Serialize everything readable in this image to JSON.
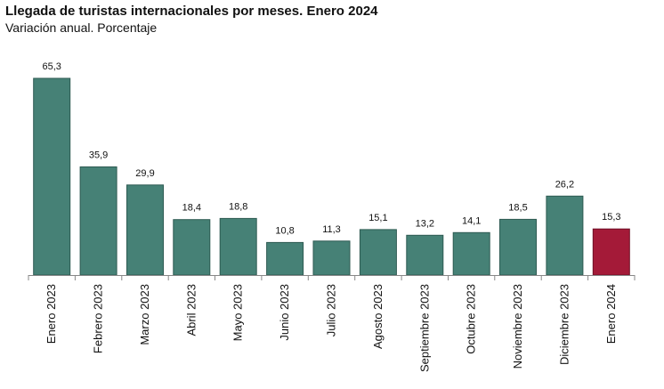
{
  "title": "Llegada de turistas internacionales por meses. Enero 2024",
  "subtitle": "Variación anual. Porcentaje",
  "colors": {
    "bar": "#468176",
    "highlight": "#a41a38",
    "bar_edge": "#2d5a52",
    "highlight_edge": "#6e1026",
    "axis": "#888888"
  },
  "chart_data": {
    "type": "bar",
    "title": "Llegada de turistas internacionales por meses. Enero 2024",
    "subtitle": "Variación anual. Porcentaje",
    "categories": [
      "Enero 2023",
      "Febrero 2023",
      "Marzo 2023",
      "Abril 2023",
      "Mayo 2023",
      "Junio 2023",
      "Julio 2023",
      "Agosto 2023",
      "Septiembre 2023",
      "Octubre 2023",
      "Noviembre 2023",
      "Diciembre 2023",
      "Enero 2024"
    ],
    "values": [
      65.3,
      35.9,
      29.9,
      18.4,
      18.8,
      10.8,
      11.3,
      15.1,
      13.2,
      14.1,
      18.5,
      26.2,
      15.3
    ],
    "value_labels": [
      "65,3",
      "35,9",
      "29,9",
      "18,4",
      "18,8",
      "10,8",
      "11,3",
      "15,1",
      "13,2",
      "14,1",
      "18,5",
      "26,2",
      "15,3"
    ],
    "highlight_index": 12,
    "ylim": [
      0,
      65.3
    ],
    "grid": false,
    "xlabel": "",
    "ylabel": ""
  }
}
